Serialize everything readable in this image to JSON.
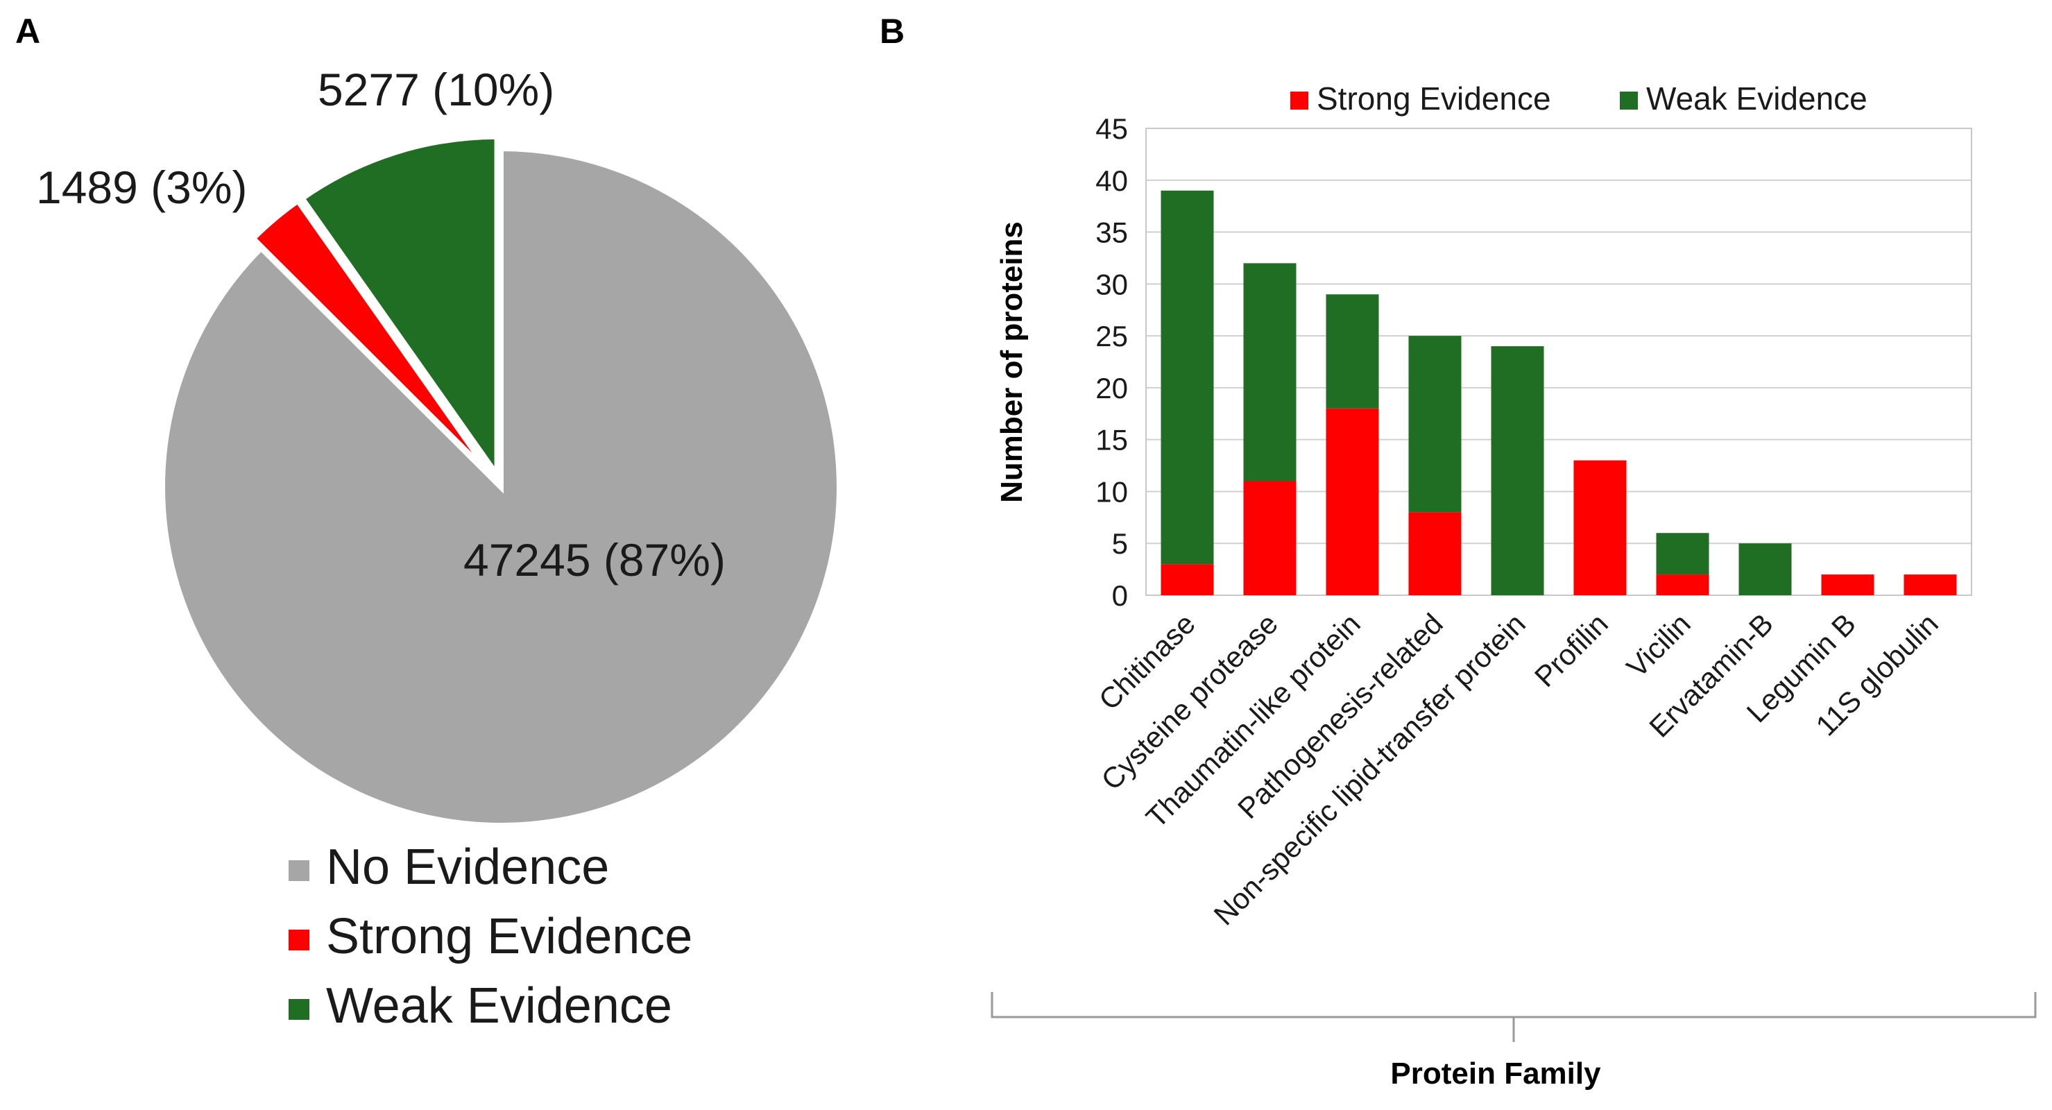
{
  "chart_data": [
    {
      "type": "pie",
      "panel": "A",
      "slices": [
        {
          "label": "Weak Evidence",
          "value": 5277,
          "display": "5277 (10%)",
          "color": "#1f6e23"
        },
        {
          "label": "Strong Evidence",
          "value": 1489,
          "display": "1489 (3%)",
          "color": "#ff0000"
        },
        {
          "label": "No Evidence",
          "value": 47245,
          "display": "47245 (87%)",
          "color": "#a6a6a6"
        }
      ],
      "legend": [
        "No Evidence",
        "Strong Evidence",
        "Weak Evidence"
      ],
      "legend_colors": [
        "#a6a6a6",
        "#ff0000",
        "#1f6e23"
      ]
    },
    {
      "type": "bar",
      "stacked": true,
      "panel": "B",
      "categories": [
        "Chitinase",
        "Cysteine protease",
        "Thaumatin-like protein",
        "Pathogenesis-related",
        "Non-specific lipid-transfer protein",
        "Profilin",
        "Vicilin",
        "Ervatamin-B",
        "Legumin B",
        "11S globulin"
      ],
      "series": [
        {
          "name": "Strong Evidence",
          "color": "#ff0000",
          "values": [
            3,
            11,
            18,
            8,
            0,
            13,
            2,
            0,
            2,
            2
          ]
        },
        {
          "name": "Weak Evidence",
          "color": "#1f6e23",
          "values": [
            36,
            21,
            11,
            17,
            24,
            0,
            4,
            5,
            0,
            0
          ]
        }
      ],
      "xlabel": "Protein Family",
      "ylabel": "Number of proteins",
      "ylim": [
        0,
        45
      ],
      "yticks": [
        0,
        5,
        10,
        15,
        20,
        25,
        30,
        35,
        40,
        45
      ],
      "grid": true,
      "legend_position": "top"
    }
  ]
}
